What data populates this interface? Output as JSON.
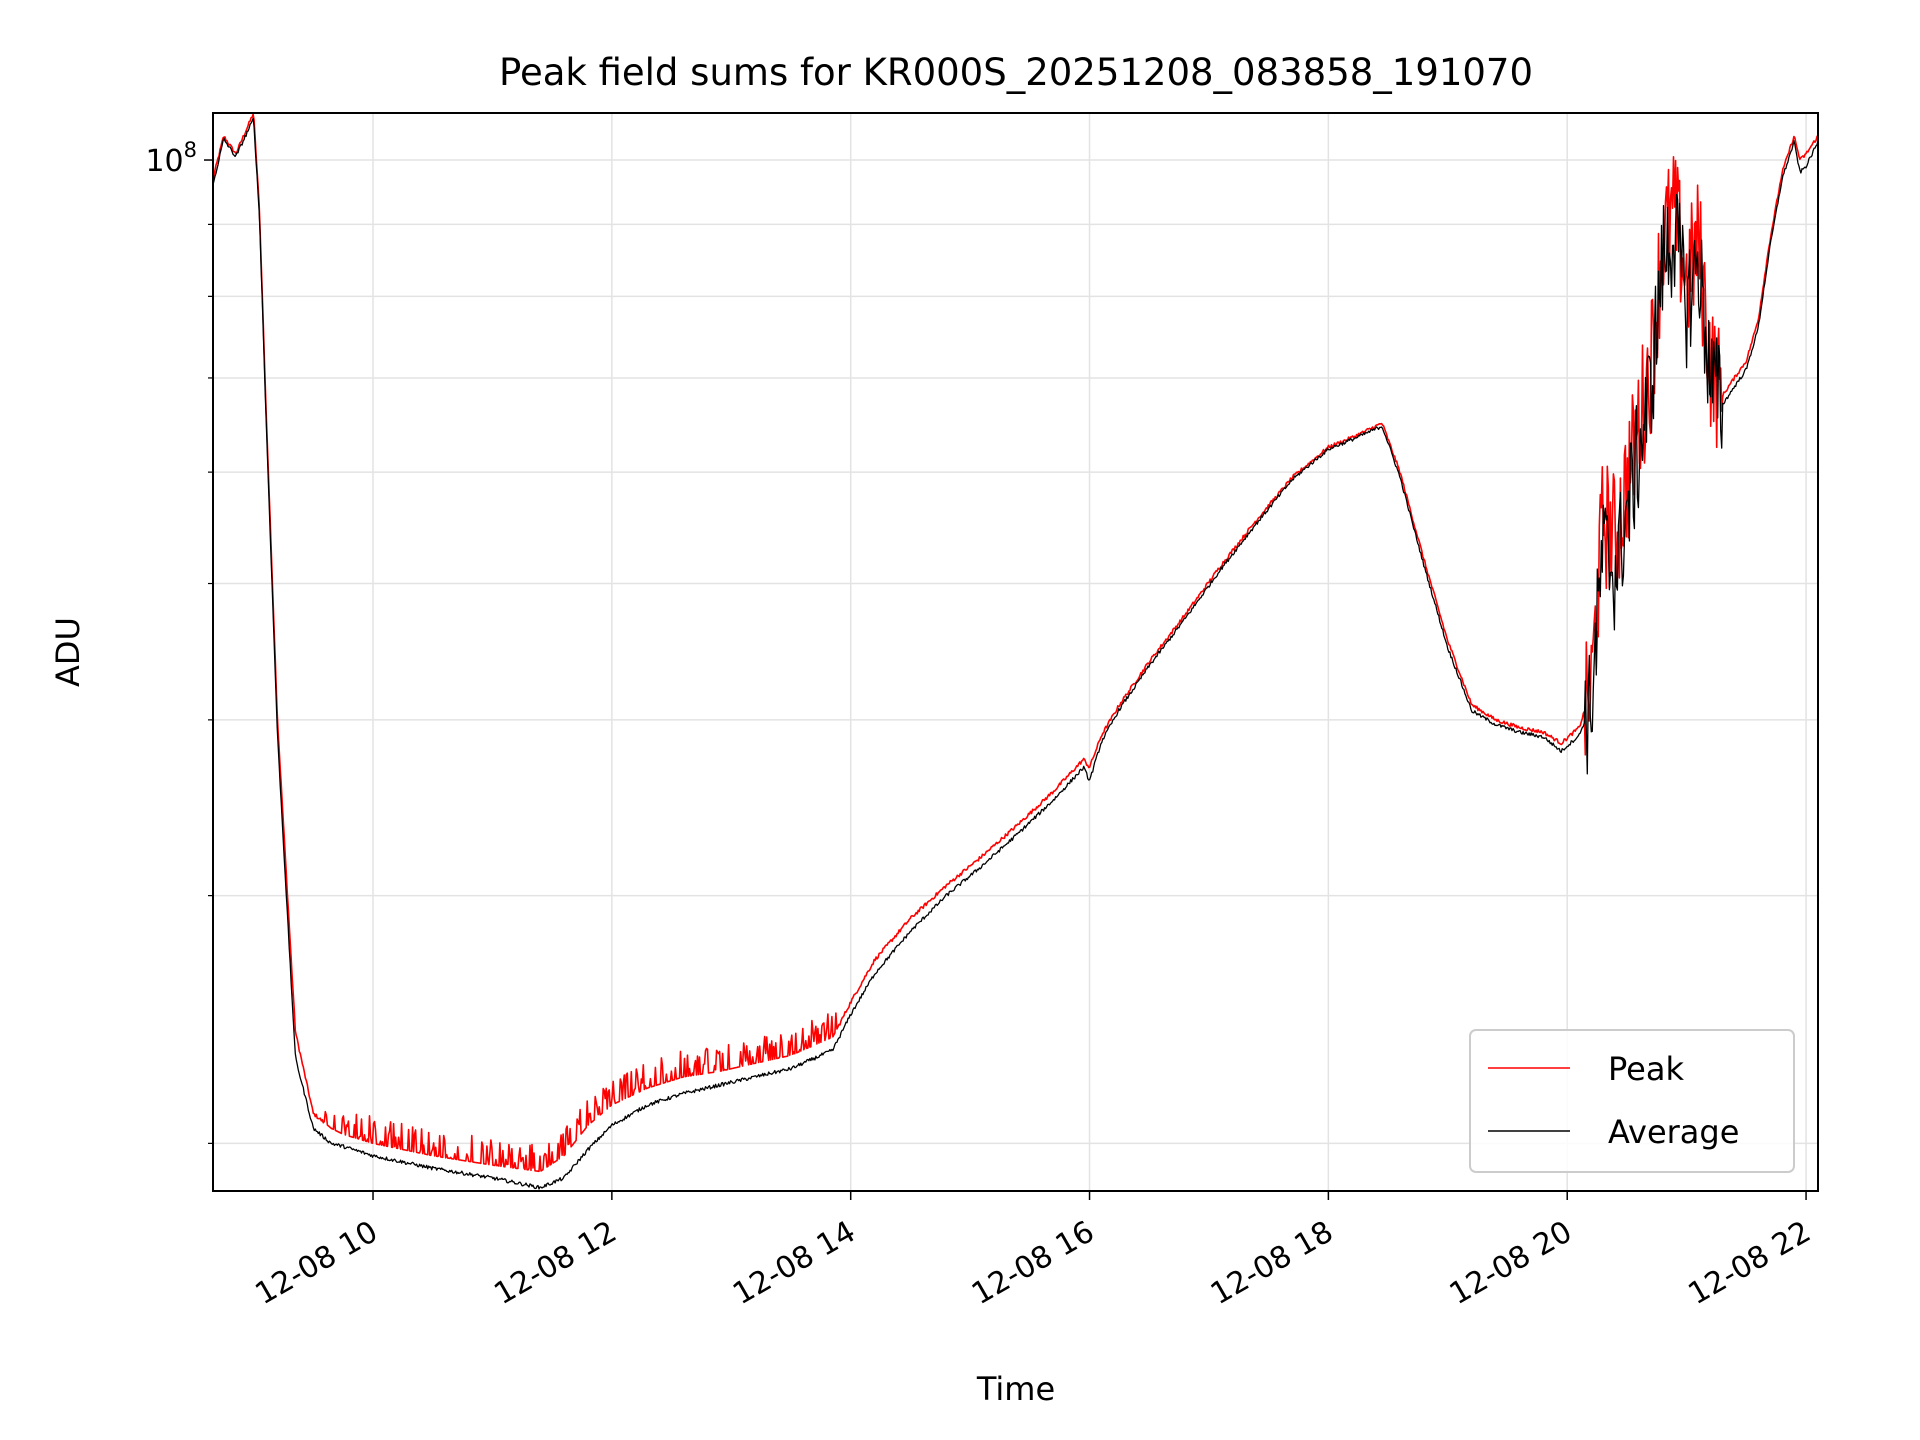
{
  "chart_data": {
    "type": "line",
    "title": "Peak field sums for KR000S_20251208_083858_191070",
    "xlabel": "Time",
    "ylabel": "ADU",
    "y_scale": "log",
    "x_unit": "hours since 12-08 00:00",
    "xlim": [
      8.66,
      22.1
    ],
    "ylim": [
      18500000,
      108000000
    ],
    "x_ticks": [
      10,
      12,
      14,
      16,
      18,
      20,
      22
    ],
    "x_tick_labels": [
      "12-08 10",
      "12-08 12",
      "12-08 14",
      "12-08 16",
      "12-08 18",
      "12-08 20",
      "12-08 22"
    ],
    "y_major_ticks": [
      100000000
    ],
    "y_major_tick_labels": [
      {
        "base": "10",
        "exp": "8"
      }
    ],
    "y_minor_ticks": [
      20000000,
      30000000,
      40000000,
      50000000,
      60000000,
      70000000,
      80000000,
      90000000
    ],
    "grid": true,
    "legend_position": "lower-right",
    "series": [
      {
        "name": "Peak",
        "color": "#ff0000",
        "x": [
          8.66,
          8.75,
          8.85,
          9.0,
          9.05,
          9.1,
          9.2,
          9.35,
          9.5,
          9.65,
          9.75,
          10.0,
          10.5,
          11.0,
          11.4,
          11.6,
          11.8,
          12.0,
          12.3,
          12.6,
          12.9,
          13.2,
          13.5,
          13.85,
          14.0,
          14.2,
          14.5,
          14.8,
          15.1,
          15.4,
          15.7,
          15.95,
          16.0,
          16.1,
          16.25,
          16.5,
          16.8,
          17.1,
          17.4,
          17.7,
          18.0,
          18.2,
          18.45,
          18.6,
          18.8,
          19.0,
          19.2,
          19.4,
          19.6,
          19.8,
          19.95,
          20.1,
          20.2,
          20.3,
          20.4,
          20.55,
          20.7,
          20.8,
          20.9,
          21.0,
          21.1,
          21.2,
          21.3,
          21.4,
          21.5,
          21.6,
          21.7,
          21.8,
          21.9,
          21.95,
          22.0,
          22.1
        ],
        "values": [
          97000000,
          104000000,
          101000000,
          108000000,
          92000000,
          68000000,
          40000000,
          24000000,
          21000000,
          20500000,
          20300000,
          20000000,
          19600000,
          19300000,
          19100000,
          19600000,
          20600000,
          21300000,
          21900000,
          22300000,
          22500000,
          22800000,
          23100000,
          23800000,
          25200000,
          27000000,
          28900000,
          30500000,
          32000000,
          33700000,
          35600000,
          37500000,
          37000000,
          39000000,
          41000000,
          44000000,
          47500000,
          51500000,
          55500000,
          59500000,
          62500000,
          63500000,
          65000000,
          60000000,
          52000000,
          45500000,
          41000000,
          40000000,
          39500000,
          39200000,
          38500000,
          39500000,
          42000000,
          56000000,
          54000000,
          62000000,
          72000000,
          88000000,
          92000000,
          82000000,
          88000000,
          72000000,
          68000000,
          70000000,
          72000000,
          77000000,
          88000000,
          98000000,
          104000000,
          100000000,
          101000000,
          104000000
        ]
      },
      {
        "name": "Average",
        "color": "#000000",
        "x": [
          8.66,
          8.75,
          8.85,
          9.0,
          9.05,
          9.1,
          9.2,
          9.35,
          9.5,
          9.65,
          9.75,
          10.0,
          10.5,
          11.0,
          11.4,
          11.6,
          11.8,
          12.0,
          12.3,
          12.6,
          12.9,
          13.2,
          13.5,
          13.85,
          14.0,
          14.2,
          14.5,
          14.8,
          15.1,
          15.4,
          15.7,
          15.95,
          16.0,
          16.1,
          16.25,
          16.5,
          16.8,
          17.1,
          17.4,
          17.7,
          18.0,
          18.2,
          18.45,
          18.6,
          18.8,
          19.0,
          19.2,
          19.4,
          19.6,
          19.8,
          19.95,
          20.1,
          20.2,
          20.3,
          20.4,
          20.55,
          20.7,
          20.8,
          20.9,
          21.0,
          21.1,
          21.2,
          21.3,
          21.4,
          21.5,
          21.6,
          21.7,
          21.8,
          21.9,
          21.95,
          22.0,
          22.1
        ],
        "values": [
          96000000,
          103500000,
          100500000,
          107000000,
          91000000,
          67000000,
          39000000,
          23000000,
          20500000,
          20000000,
          19900000,
          19600000,
          19200000,
          18900000,
          18600000,
          18900000,
          19800000,
          20600000,
          21300000,
          21700000,
          22000000,
          22300000,
          22600000,
          23300000,
          24700000,
          26400000,
          28300000,
          30000000,
          31500000,
          33200000,
          35100000,
          37000000,
          36200000,
          38600000,
          40700000,
          43700000,
          47200000,
          51200000,
          55200000,
          59300000,
          62300000,
          63300000,
          64700000,
          59500000,
          51500000,
          45000000,
          40600000,
          39700000,
          39200000,
          38900000,
          38000000,
          39000000,
          41000000,
          53000000,
          51000000,
          59000000,
          69000000,
          85000000,
          89000000,
          79000000,
          85000000,
          70000000,
          67000000,
          69000000,
          71000000,
          76000000,
          87000000,
          97000000,
          103000000,
          98000000,
          99000000,
          103000000
        ]
      }
    ]
  }
}
